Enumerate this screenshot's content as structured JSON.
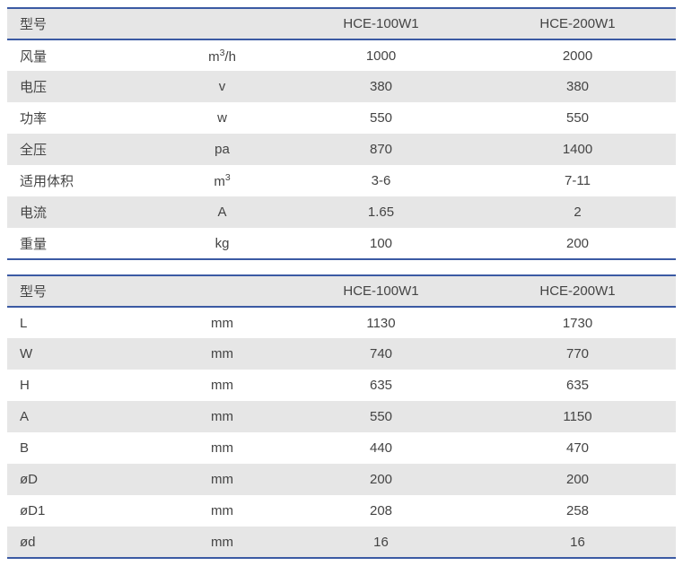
{
  "colors": {
    "border_accent": "#3b5aa3",
    "row_alt_bg": "#e6e6e6",
    "row_bg": "#ffffff",
    "text": "#444444"
  },
  "table1": {
    "headers": {
      "label": "型号",
      "unit": "",
      "v1": "HCE-100W1",
      "v2": "HCE-200W1"
    },
    "rows": [
      {
        "label": "风量",
        "unit_html": "m<sup>3</sup>/h",
        "v1": "1000",
        "v2": "2000"
      },
      {
        "label": "电压",
        "unit_html": "v",
        "v1": "380",
        "v2": "380"
      },
      {
        "label": "功率",
        "unit_html": "w",
        "v1": "550",
        "v2": "550"
      },
      {
        "label": "全压",
        "unit_html": "pa",
        "v1": "870",
        "v2": "1400"
      },
      {
        "label": "适用体积",
        "unit_html": "m<sup>3</sup>",
        "v1": "3-6",
        "v2": "7-11"
      },
      {
        "label": "电流",
        "unit_html": "A",
        "v1": "1.65",
        "v2": "2"
      },
      {
        "label": "重量",
        "unit_html": "kg",
        "v1": "100",
        "v2": "200"
      }
    ]
  },
  "table2": {
    "headers": {
      "label": "型号",
      "unit": "",
      "v1": "HCE-100W1",
      "v2": "HCE-200W1"
    },
    "rows": [
      {
        "label": "L",
        "unit_html": "mm",
        "v1": "1130",
        "v2": "1730"
      },
      {
        "label": "W",
        "unit_html": "mm",
        "v1": "740",
        "v2": "770"
      },
      {
        "label": "H",
        "unit_html": "mm",
        "v1": "635",
        "v2": "635"
      },
      {
        "label": "A",
        "unit_html": "mm",
        "v1": "550",
        "v2": "1150"
      },
      {
        "label": "B",
        "unit_html": "mm",
        "v1": "440",
        "v2": "470"
      },
      {
        "label": "øD",
        "unit_html": "mm",
        "v1": "200",
        "v2": "200"
      },
      {
        "label": "øD1",
        "unit_html": "mm",
        "v1": "208",
        "v2": "258"
      },
      {
        "label": "ød",
        "unit_html": "mm",
        "v1": "16",
        "v2": "16"
      }
    ]
  }
}
